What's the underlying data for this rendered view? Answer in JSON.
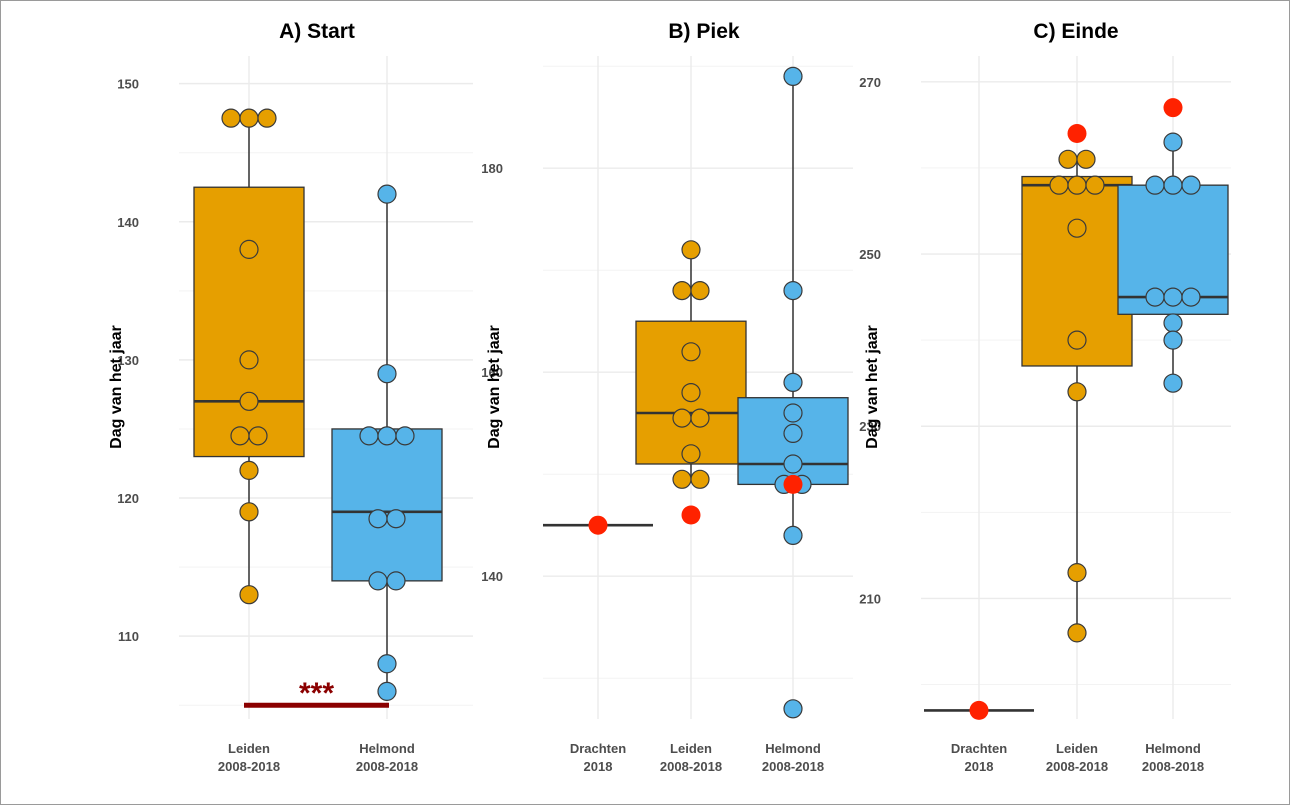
{
  "chart_data": [
    {
      "type": "box",
      "title": "A) Start",
      "ylabel": "Dag van het jaar",
      "xlabel": "",
      "ylim": [
        104,
        152
      ],
      "yticks": [
        110,
        120,
        130,
        140,
        150
      ],
      "grid": true,
      "categories": [
        {
          "label": [
            "Leiden",
            "2008-2018"
          ],
          "color": "#E69F00",
          "box": {
            "q1": 123,
            "median": 127,
            "q3": 142.5,
            "whisker_low": 113,
            "whisker_high": 147.5
          },
          "points": [
            147.5,
            147.5,
            147.5,
            138,
            130,
            127,
            124.5,
            124.5,
            122,
            119,
            113
          ],
          "highlight": []
        },
        {
          "label": [
            "Helmond",
            "2008-2018"
          ],
          "color": "#56B4E9",
          "box": {
            "q1": 114,
            "median": 119,
            "q3": 125,
            "whisker_low": 106,
            "whisker_high": 142
          },
          "points": [
            142,
            129,
            124.5,
            124.5,
            124.5,
            118.5,
            118.5,
            114,
            114,
            108,
            106
          ],
          "highlight": []
        }
      ],
      "annotation": {
        "text": "***",
        "y": 105,
        "from": 0,
        "to": 1,
        "color": "#8B0000"
      }
    },
    {
      "type": "box",
      "title": "B) Piek",
      "ylabel": "Dag van het jaar",
      "xlabel": "",
      "ylim": [
        126,
        191
      ],
      "yticks": [
        140,
        160,
        180
      ],
      "grid": true,
      "categories": [
        {
          "label": [
            "Drachten",
            "2018"
          ],
          "color": "#E69F00",
          "box": {
            "q1": 145,
            "median": 145,
            "q3": 145,
            "whisker_low": 145,
            "whisker_high": 145
          },
          "points": [],
          "highlight": [
            145
          ]
        },
        {
          "label": [
            "Leiden",
            "2008-2018"
          ],
          "color": "#E69F00",
          "box": {
            "q1": 151,
            "median": 156,
            "q3": 165,
            "whisker_low": 149.5,
            "whisker_high": 172
          },
          "points": [
            172,
            168,
            168,
            162,
            158,
            155.5,
            155.5,
            152,
            149.5,
            149.5
          ],
          "highlight": [
            146
          ]
        },
        {
          "label": [
            "Helmond",
            "2008-2018"
          ],
          "color": "#56B4E9",
          "box": {
            "q1": 149,
            "median": 151,
            "q3": 157.5,
            "whisker_low": 144,
            "whisker_high": 189
          },
          "points": [
            189,
            168,
            159,
            156,
            154,
            151,
            149,
            149,
            144,
            127
          ],
          "highlight": [
            149
          ]
        }
      ]
    },
    {
      "type": "box",
      "title": "C) Einde",
      "ylabel": "Dag van het jaar",
      "xlabel": "",
      "ylim": [
        196,
        273
      ],
      "yticks": [
        210,
        230,
        250,
        270
      ],
      "grid": true,
      "categories": [
        {
          "label": [
            "Drachten",
            "2018"
          ],
          "color": "#E69F00",
          "box": {
            "q1": 197,
            "median": 197,
            "q3": 197,
            "whisker_low": 197,
            "whisker_high": 197
          },
          "points": [],
          "highlight": [
            197
          ]
        },
        {
          "label": [
            "Leiden",
            "2008-2018"
          ],
          "color": "#E69F00",
          "box": {
            "q1": 237,
            "median": 258,
            "q3": 259,
            "whisker_low": 206,
            "whisker_high": 261
          },
          "points": [
            261,
            261,
            258,
            258,
            258,
            253,
            240,
            234,
            213,
            206
          ],
          "highlight": [
            264
          ]
        },
        {
          "label": [
            "Helmond",
            "2008-2018"
          ],
          "color": "#56B4E9",
          "box": {
            "q1": 243,
            "median": 245,
            "q3": 258,
            "whisker_low": 235,
            "whisker_high": 263
          },
          "points": [
            263,
            258,
            258,
            258,
            245,
            245,
            245,
            242,
            240,
            235
          ],
          "highlight": [
            267
          ]
        }
      ]
    }
  ],
  "colors": {
    "highlight": "#FF2200",
    "grid": "#ebebeb",
    "box_line": "#333333"
  }
}
